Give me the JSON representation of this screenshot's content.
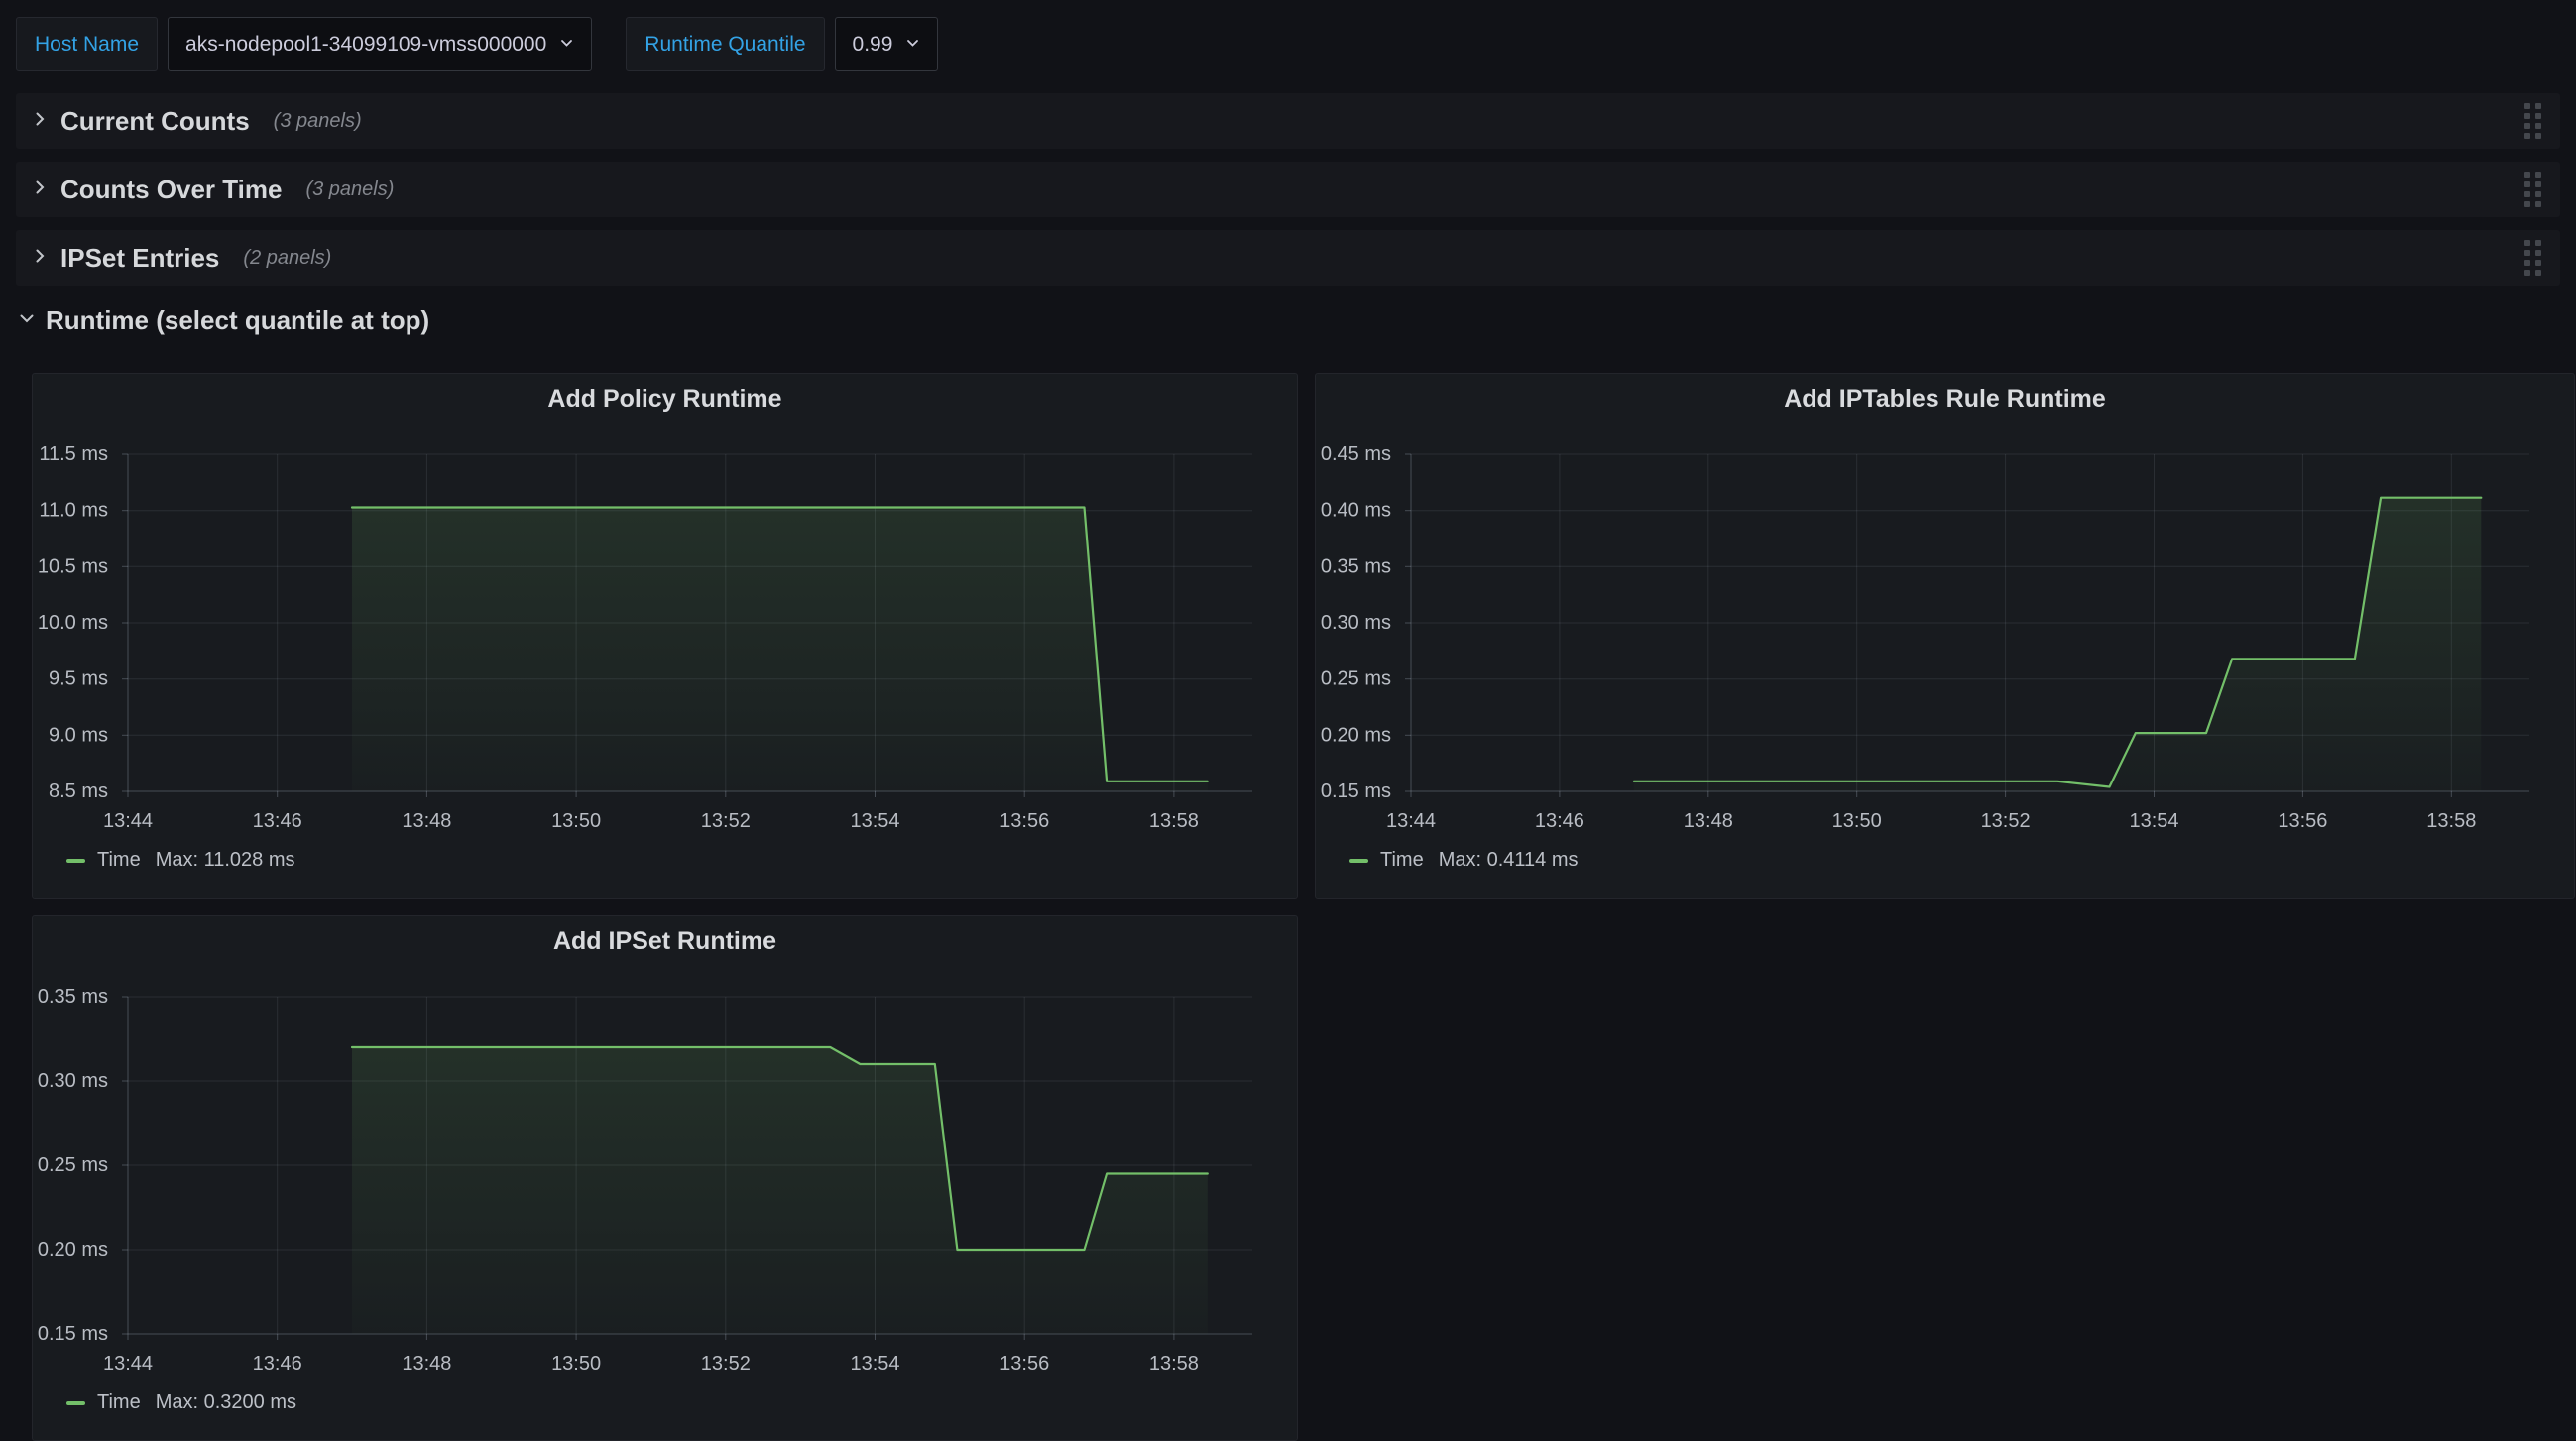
{
  "colors": {
    "accent_blue": "#33a2e5",
    "series_green": "#73bf69",
    "canvas_bg": "#111217",
    "panel_bg": "#181b1f",
    "row_bg": "#17181d"
  },
  "topbar": {
    "variables": [
      {
        "label": "Host Name",
        "value": "aks-nodepool1-34099109-vmss000000"
      },
      {
        "label": "Runtime Quantile",
        "value": "0.99"
      }
    ]
  },
  "rows": [
    {
      "title": "Current Counts",
      "count": "(3 panels)",
      "collapsed": true
    },
    {
      "title": "Counts Over Time",
      "count": "(3 panels)",
      "collapsed": true
    },
    {
      "title": "IPSet Entries",
      "count": "(2 panels)",
      "collapsed": true
    },
    {
      "title": "Runtime (select quantile at top)",
      "collapsed": false
    }
  ],
  "chart_data": [
    {
      "type": "line",
      "title": "Add Policy Runtime",
      "xlabel": "",
      "ylabel": "",
      "unit": "ms",
      "grid": true,
      "legend_position": "bottom-left",
      "x_domain_minutes": [
        44,
        59.05
      ],
      "x_tick_minutes": [
        44,
        46,
        48,
        50,
        52,
        54,
        56,
        58
      ],
      "x_tick_labels": [
        "13:44",
        "13:46",
        "13:48",
        "13:50",
        "13:52",
        "13:54",
        "13:56",
        "13:58"
      ],
      "ylim": [
        8.5,
        11.5
      ],
      "y_ticks": [
        11.5,
        11.0,
        10.5,
        10.0,
        9.5,
        9.0,
        8.5
      ],
      "y_decimals": 1,
      "series": [
        {
          "name": "Time",
          "color": "#73bf69",
          "points": [
            [
              47.0,
              11.028
            ],
            [
              56.8,
              11.028
            ],
            [
              57.1,
              8.59
            ],
            [
              58.45,
              8.59
            ]
          ]
        }
      ],
      "legend": {
        "series": "Time",
        "max_label": "Max: 11.028 ms"
      }
    },
    {
      "type": "line",
      "title": "Add IPTables Rule Runtime",
      "xlabel": "",
      "ylabel": "",
      "unit": "ms",
      "grid": true,
      "legend_position": "bottom-left",
      "x_domain_minutes": [
        44,
        59.05
      ],
      "x_tick_minutes": [
        44,
        46,
        48,
        50,
        52,
        54,
        56,
        58
      ],
      "x_tick_labels": [
        "13:44",
        "13:46",
        "13:48",
        "13:50",
        "13:52",
        "13:54",
        "13:56",
        "13:58"
      ],
      "ylim": [
        0.15,
        0.45
      ],
      "y_ticks": [
        0.45,
        0.4,
        0.35,
        0.3,
        0.25,
        0.2,
        0.15
      ],
      "y_decimals": 2,
      "series": [
        {
          "name": "Time",
          "color": "#73bf69",
          "points": [
            [
              47.0,
              0.159
            ],
            [
              52.7,
              0.159
            ],
            [
              53.4,
              0.154
            ],
            [
              53.75,
              0.202
            ],
            [
              54.7,
              0.202
            ],
            [
              55.05,
              0.268
            ],
            [
              56.7,
              0.268
            ],
            [
              57.05,
              0.4114
            ],
            [
              58.4,
              0.4114
            ]
          ]
        }
      ],
      "legend": {
        "series": "Time",
        "max_label": "Max: 0.4114 ms"
      }
    },
    {
      "type": "line",
      "title": "Add IPSet Runtime",
      "xlabel": "",
      "ylabel": "",
      "unit": "ms",
      "grid": true,
      "legend_position": "bottom-left",
      "x_domain_minutes": [
        44,
        59.05
      ],
      "x_tick_minutes": [
        44,
        46,
        48,
        50,
        52,
        54,
        56,
        58
      ],
      "x_tick_labels": [
        "13:44",
        "13:46",
        "13:48",
        "13:50",
        "13:52",
        "13:54",
        "13:56",
        "13:58"
      ],
      "ylim": [
        0.15,
        0.35
      ],
      "y_ticks": [
        0.35,
        0.3,
        0.25,
        0.2,
        0.15
      ],
      "y_decimals": 2,
      "series": [
        {
          "name": "Time",
          "color": "#73bf69",
          "points": [
            [
              47.0,
              0.32
            ],
            [
              53.4,
              0.32
            ],
            [
              53.8,
              0.31
            ],
            [
              54.8,
              0.31
            ],
            [
              55.1,
              0.2
            ],
            [
              56.8,
              0.2
            ],
            [
              57.1,
              0.245
            ],
            [
              58.45,
              0.245
            ]
          ]
        }
      ],
      "legend": {
        "series": "Time",
        "max_label": "Max: 0.3200 ms"
      }
    }
  ]
}
